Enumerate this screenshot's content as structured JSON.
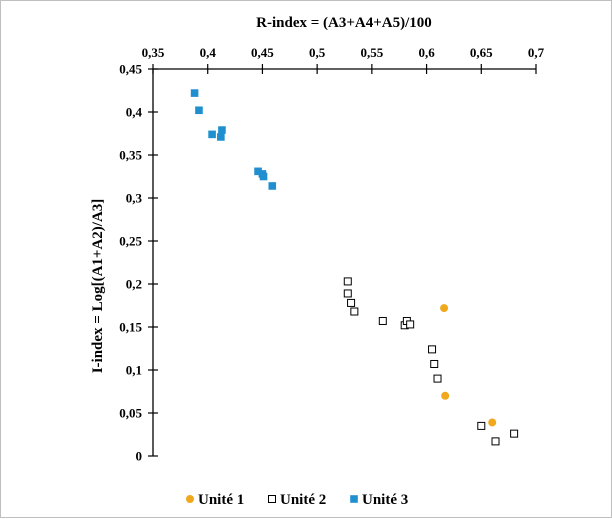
{
  "chart_data": {
    "type": "scatter",
    "title": "",
    "xlabel": "R-index = (A3+A4+A5)/100",
    "ylabel": "I-index = Log[(A1+A2)/A3]",
    "xlim": [
      0.35,
      0.7
    ],
    "ylim": [
      0,
      0.45
    ],
    "x_axis_position": "top",
    "x_ticks": [
      "0,35",
      "0,4",
      "0,45",
      "0,5",
      "0,55",
      "0,6",
      "0,65",
      "0,7"
    ],
    "y_ticks": [
      "0",
      "0,05",
      "0,1",
      "0,15",
      "0,2",
      "0,25",
      "0,3",
      "0,35",
      "0,4",
      "0,45"
    ],
    "grid": false,
    "legend_position": "bottom",
    "series": [
      {
        "name": "Unité 1",
        "marker": "circle",
        "color": "#f0a81c",
        "points": [
          [
            0.616,
            0.172
          ],
          [
            0.617,
            0.07
          ],
          [
            0.66,
            0.039
          ]
        ]
      },
      {
        "name": "Unité 2",
        "marker": "square-open",
        "color": "#000000",
        "points": [
          [
            0.528,
            0.203
          ],
          [
            0.528,
            0.189
          ],
          [
            0.531,
            0.178
          ],
          [
            0.534,
            0.168
          ],
          [
            0.56,
            0.157
          ],
          [
            0.58,
            0.152
          ],
          [
            0.582,
            0.157
          ],
          [
            0.585,
            0.153
          ],
          [
            0.605,
            0.124
          ],
          [
            0.607,
            0.107
          ],
          [
            0.61,
            0.09
          ],
          [
            0.65,
            0.035
          ],
          [
            0.663,
            0.017
          ],
          [
            0.68,
            0.026
          ]
        ]
      },
      {
        "name": "Unité 3",
        "marker": "square",
        "color": "#1f8fcf",
        "points": [
          [
            0.388,
            0.422
          ],
          [
            0.392,
            0.402
          ],
          [
            0.404,
            0.374
          ],
          [
            0.412,
            0.371
          ],
          [
            0.413,
            0.379
          ],
          [
            0.446,
            0.331
          ],
          [
            0.45,
            0.328
          ],
          [
            0.451,
            0.325
          ],
          [
            0.459,
            0.314
          ]
        ]
      }
    ]
  }
}
